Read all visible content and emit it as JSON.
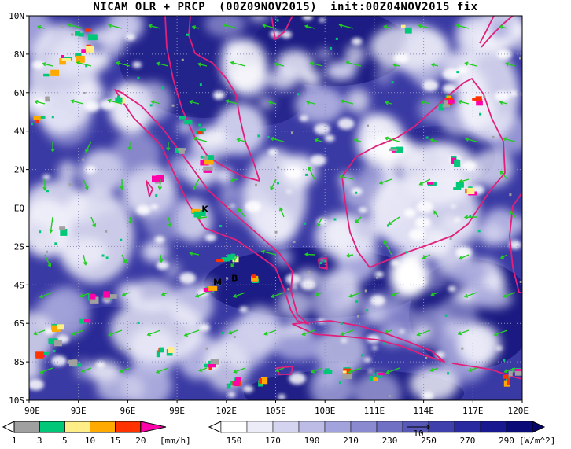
{
  "title": {
    "model": "NICAM OLR + PRCP",
    "valid": "(00Z09NOV2015)",
    "init": "init:00Z04NOV2015 fix"
  },
  "axes": {
    "lat_labels": [
      "10N",
      "8N",
      "6N",
      "4N",
      "2N",
      "EQ",
      "2S",
      "4S",
      "6S",
      "8S",
      "10S"
    ],
    "lon_labels": [
      "90E",
      "93E",
      "96E",
      "99E",
      "102E",
      "105E",
      "108E",
      "111E",
      "114E",
      "117E",
      "120E"
    ]
  },
  "markers": [
    {
      "label": "K",
      "lon": 100.5,
      "lat": -0.2
    },
    {
      "label": "M",
      "lon": 101.2,
      "lat": -4.0
    },
    {
      "label": "B",
      "lon": 102.3,
      "lat": -3.8
    }
  ],
  "precip_colorbar": {
    "ticks": [
      "1",
      "3",
      "5",
      "10",
      "15",
      "20"
    ],
    "unit": "[mm/h]",
    "colors": [
      "#a0a0a0",
      "#00c878",
      "#ffee88",
      "#ffaa00",
      "#ff3300",
      "#ff00aa"
    ]
  },
  "olr_colorbar": {
    "ticks": [
      "150",
      "170",
      "190",
      "210",
      "230",
      "250",
      "270",
      "290"
    ],
    "unit": "[W/m^2]",
    "vector_ref": "10",
    "colors": [
      "#ffffff",
      "#ececf8",
      "#d4d4f0",
      "#bcbce6",
      "#a2a2dc",
      "#8a8ad0",
      "#7070c4",
      "#5858b8",
      "#4040ac",
      "#2a2aa0",
      "#181890",
      "#0a0a78"
    ]
  },
  "colors": {
    "coastline": "#e0207a",
    "wind_vectors": "#22cc22",
    "background_ocean": "#2e2e9c",
    "cloud": "#ffffff"
  }
}
